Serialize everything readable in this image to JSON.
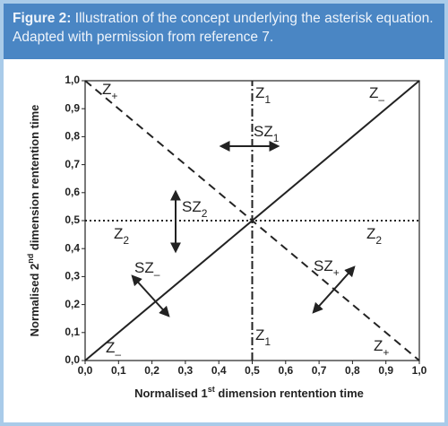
{
  "caption": {
    "label": "Figure 2:",
    "text": " Illustration of the concept underlying the asterisk equation. Adapted with permission from reference 7."
  },
  "chart_data": {
    "type": "line",
    "xlabel": [
      "Normalised 1",
      "st",
      " dimension rentention time"
    ],
    "ylabel": [
      "Normalised 2",
      "nd",
      " dimension rentention time"
    ],
    "xlim": [
      0,
      1
    ],
    "ylim": [
      0,
      1
    ],
    "xticks": [
      {
        "value": 0,
        "label": "0,0"
      },
      {
        "value": 0.1,
        "label": "0,1"
      },
      {
        "value": 0.2,
        "label": "0,2"
      },
      {
        "value": 0.3,
        "label": "0,3"
      },
      {
        "value": 0.4,
        "label": "0,4"
      },
      {
        "value": 0.5,
        "label": "0,5"
      },
      {
        "value": 0.6,
        "label": "0,6"
      },
      {
        "value": 0.7,
        "label": "0,7"
      },
      {
        "value": 0.8,
        "label": "0,8"
      },
      {
        "value": 0.9,
        "label": "0,9"
      },
      {
        "value": 1,
        "label": "1,0"
      }
    ],
    "yticks": [
      {
        "value": 0,
        "label": "0,0"
      },
      {
        "value": 0.1,
        "label": "0,1"
      },
      {
        "value": 0.2,
        "label": "0,2"
      },
      {
        "value": 0.3,
        "label": "0,3"
      },
      {
        "value": 0.4,
        "label": "0,4"
      },
      {
        "value": 0.5,
        "label": "0,5"
      },
      {
        "value": 0.6,
        "label": "0,6"
      },
      {
        "value": 0.7,
        "label": "0,7"
      },
      {
        "value": 0.8,
        "label": "0,8"
      },
      {
        "value": 0.9,
        "label": "0,9"
      },
      {
        "value": 1,
        "label": "1,0"
      }
    ],
    "series": [
      {
        "color": "#222222",
        "style": "solid",
        "x": [
          0,
          1
        ],
        "values": [
          0,
          1
        ]
      },
      {
        "color": "#222222",
        "style": "dashed",
        "x": [
          0,
          1
        ],
        "values": [
          1,
          0
        ]
      },
      {
        "color": "#222222",
        "style": "dotted",
        "x": [
          0,
          1
        ],
        "values": [
          0.5,
          0.5
        ]
      },
      {
        "color": "#222222",
        "style": "dashdot",
        "x": [
          0.5,
          0.5
        ],
        "values": [
          0,
          1
        ]
      }
    ],
    "annotations": [
      {
        "text": "Z",
        "sub": "+"
      },
      {
        "text": "Z",
        "sub": "1"
      },
      {
        "text": "Z",
        "sub": "–"
      },
      {
        "text": "SZ",
        "sub": "1"
      },
      {
        "text": "SZ",
        "sub": "2"
      },
      {
        "text": "Z",
        "sub": "2"
      },
      {
        "text": "Z",
        "sub": "2"
      },
      {
        "text": "SZ",
        "sub": "–"
      },
      {
        "text": "SZ",
        "sub": "+"
      },
      {
        "text": "Z",
        "sub": "1"
      },
      {
        "text": "Z",
        "sub": "–"
      },
      {
        "text": "Z",
        "sub": "+"
      }
    ]
  }
}
